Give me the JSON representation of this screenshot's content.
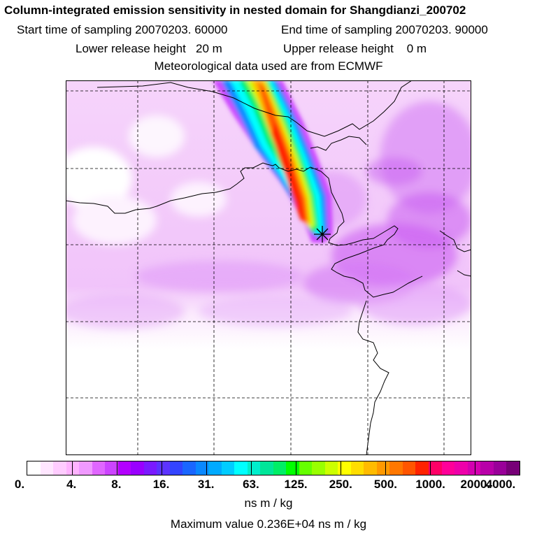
{
  "header": {
    "title": "Column-integrated emission sensitivity in nested domain for Shangdianzi_200702",
    "start_time": "Start time of sampling 20070203. 60000",
    "end_time": "End time of sampling 20070203. 90000",
    "lower_height": "Lower release height   20 m",
    "upper_height": "Upper release height    0 m",
    "met_data": "Meteorological data used are from ECMWF"
  },
  "map": {
    "marker_icon": "star-marker-icon"
  },
  "legend": {
    "colors": [
      "#ffffff",
      "#ffe6ff",
      "#ffccff",
      "#ffb3ff",
      "#f099ff",
      "#e066ff",
      "#cc44ff",
      "#b300ff",
      "#9900ff",
      "#7a1aff",
      "#5c33ff",
      "#3344ff",
      "#1a66ff",
      "#0a88ff",
      "#00aaff",
      "#00ccff",
      "#00ffff",
      "#00eecc",
      "#00e699",
      "#00ee66",
      "#00ff00",
      "#66ff00",
      "#99ff00",
      "#ccff00",
      "#ffff00",
      "#ffdd00",
      "#ffbb00",
      "#ff9900",
      "#ff7700",
      "#ff5500",
      "#ff2200",
      "#ff0066",
      "#ff0099",
      "#ee00aa",
      "#d400b0",
      "#b800a8",
      "#990099",
      "#770077"
    ],
    "ticks": [
      "0.",
      "4.",
      "8.",
      "16.",
      "31.",
      "63.",
      "125.",
      "250.",
      "500.",
      "1000.",
      "2000.",
      "4000."
    ],
    "unit": "ns m / kg",
    "max_value": "Maximum value  0.236E+04 ns m / kg"
  }
}
